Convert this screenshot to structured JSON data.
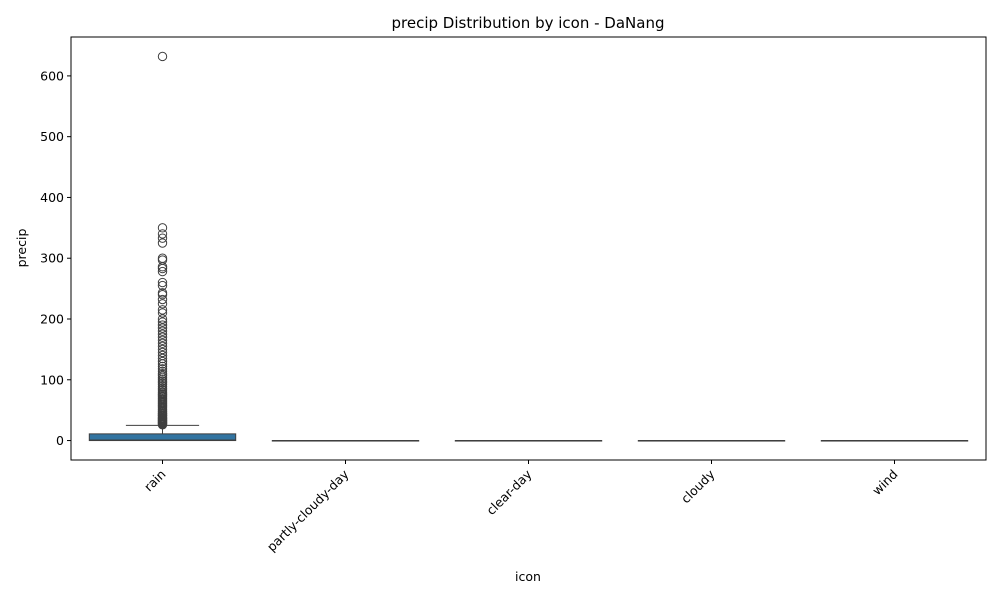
{
  "chart_data": {
    "type": "box",
    "title": "precip Distribution by icon - DaNang",
    "xlabel": "icon",
    "ylabel": "precip",
    "ylim": [
      -32,
      664
    ],
    "yticks": [
      0,
      100,
      200,
      300,
      400,
      500,
      600
    ],
    "categories": [
      "rain",
      "partly-cloudy-day",
      "clear-day",
      "cloudy",
      "wind"
    ],
    "box_color": "#3274a1",
    "grid": false,
    "boxes": [
      {
        "category": "rain",
        "whisker_low": 0,
        "q1": 0,
        "median": 1,
        "q3": 11,
        "whisker_high": 25,
        "outliers": [
          26,
          27,
          28,
          29,
          30,
          31,
          32,
          33,
          34,
          35,
          36,
          37,
          38,
          40,
          41,
          42,
          44,
          45,
          47,
          48,
          50,
          52,
          54,
          56,
          58,
          60,
          62,
          64,
          66,
          68,
          70,
          72,
          74,
          76,
          78,
          80,
          83,
          86,
          89,
          92,
          95,
          98,
          101,
          104,
          107,
          110,
          114,
          118,
          122,
          126,
          130,
          135,
          140,
          145,
          150,
          155,
          160,
          165,
          170,
          175,
          180,
          185,
          190,
          195,
          200,
          210,
          215,
          225,
          232,
          240,
          243,
          255,
          260,
          278,
          283,
          286,
          297,
          300,
          325,
          333,
          340,
          350,
          632
        ]
      },
      {
        "category": "partly-cloudy-day",
        "whisker_low": 0,
        "q1": 0,
        "median": 0,
        "q3": 0,
        "whisker_high": 0,
        "outliers": []
      },
      {
        "category": "clear-day",
        "whisker_low": 0,
        "q1": 0,
        "median": 0,
        "q3": 0,
        "whisker_high": 0,
        "outliers": []
      },
      {
        "category": "cloudy",
        "whisker_low": 0,
        "q1": 0,
        "median": 0,
        "q3": 0,
        "whisker_high": 0,
        "outliers": []
      },
      {
        "category": "wind",
        "whisker_low": 0,
        "q1": 0,
        "median": 0,
        "q3": 0,
        "whisker_high": 0,
        "outliers": []
      }
    ]
  }
}
